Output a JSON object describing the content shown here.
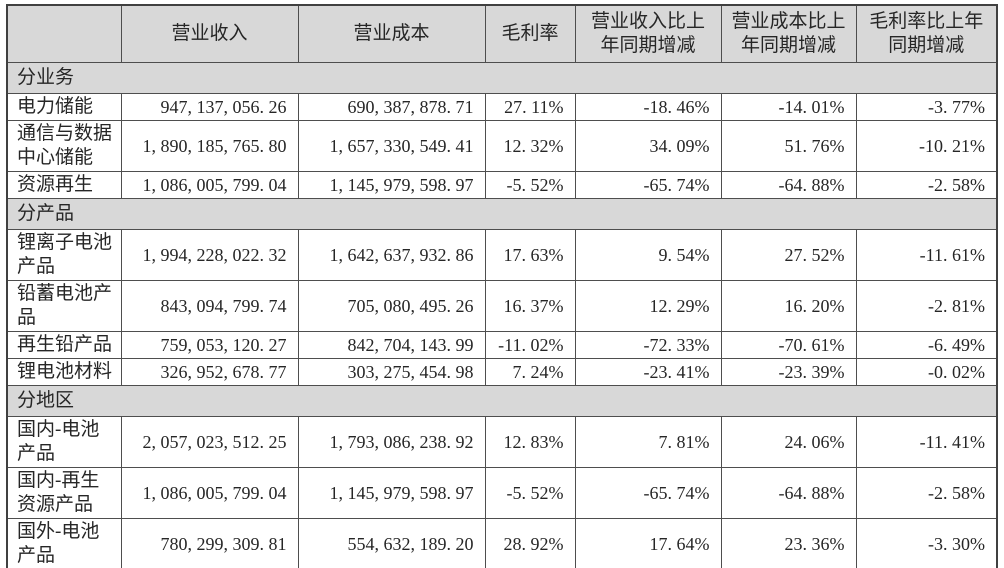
{
  "table": {
    "header": {
      "col0": "",
      "col1": "营业收入",
      "col2": "营业成本",
      "col3": "毛利率",
      "col4": "营业收入比上\n年同期增减",
      "col5": "营业成本比上\n年同期增减",
      "col6": "毛利率比上年\n同期增减"
    },
    "sections": [
      {
        "title": "分业务",
        "rows": [
          [
            "电力储能",
            "947, 137, 056. 26",
            "690, 387, 878. 71",
            "27. 11%",
            "-18. 46%",
            "-14. 01%",
            "-3. 77%"
          ],
          [
            "通信与数据\n中心储能",
            "1, 890, 185, 765. 80",
            "1, 657, 330, 549. 41",
            "12. 32%",
            "34. 09%",
            "51. 76%",
            "-10. 21%"
          ],
          [
            "资源再生",
            "1, 086, 005, 799. 04",
            "1, 145, 979, 598. 97",
            "-5. 52%",
            "-65. 74%",
            "-64. 88%",
            "-2. 58%"
          ]
        ]
      },
      {
        "title": "分产品",
        "rows": [
          [
            "锂离子电池\n产品",
            "1, 994, 228, 022. 32",
            "1, 642, 637, 932. 86",
            "17. 63%",
            "9. 54%",
            "27. 52%",
            "-11. 61%"
          ],
          [
            "铅蓄电池产\n品",
            "843, 094, 799. 74",
            "705, 080, 495. 26",
            "16. 37%",
            "12. 29%",
            "16. 20%",
            "-2. 81%"
          ],
          [
            "再生铅产品",
            "759, 053, 120. 27",
            "842, 704, 143. 99",
            "-11. 02%",
            "-72. 33%",
            "-70. 61%",
            "-6. 49%"
          ],
          [
            "锂电池材料",
            "326, 952, 678. 77",
            "303, 275, 454. 98",
            "7. 24%",
            "-23. 41%",
            "-23. 39%",
            "-0. 02%"
          ]
        ]
      },
      {
        "title": "分地区",
        "rows": [
          [
            "国内-电池\n产品",
            "2, 057, 023, 512. 25",
            "1, 793, 086, 238. 92",
            "12. 83%",
            "7. 81%",
            "24. 06%",
            "-11. 41%"
          ],
          [
            "国内-再生\n资源产品",
            "1, 086, 005, 799. 04",
            "1, 145, 979, 598. 97",
            "-5. 52%",
            "-65. 74%",
            "-64. 88%",
            "-2. 58%"
          ],
          [
            "国外-电池\n产品",
            "780, 299, 309. 81",
            "554, 632, 189. 20",
            "28. 92%",
            "17. 64%",
            "23. 36%",
            "-3. 30%"
          ]
        ]
      }
    ]
  },
  "colors": {
    "header_bg": "#d8d8d8",
    "section_bg": "#d8d8d8",
    "border": "#4e4e4e",
    "text": "#262626",
    "row_bg": "#ffffff"
  }
}
